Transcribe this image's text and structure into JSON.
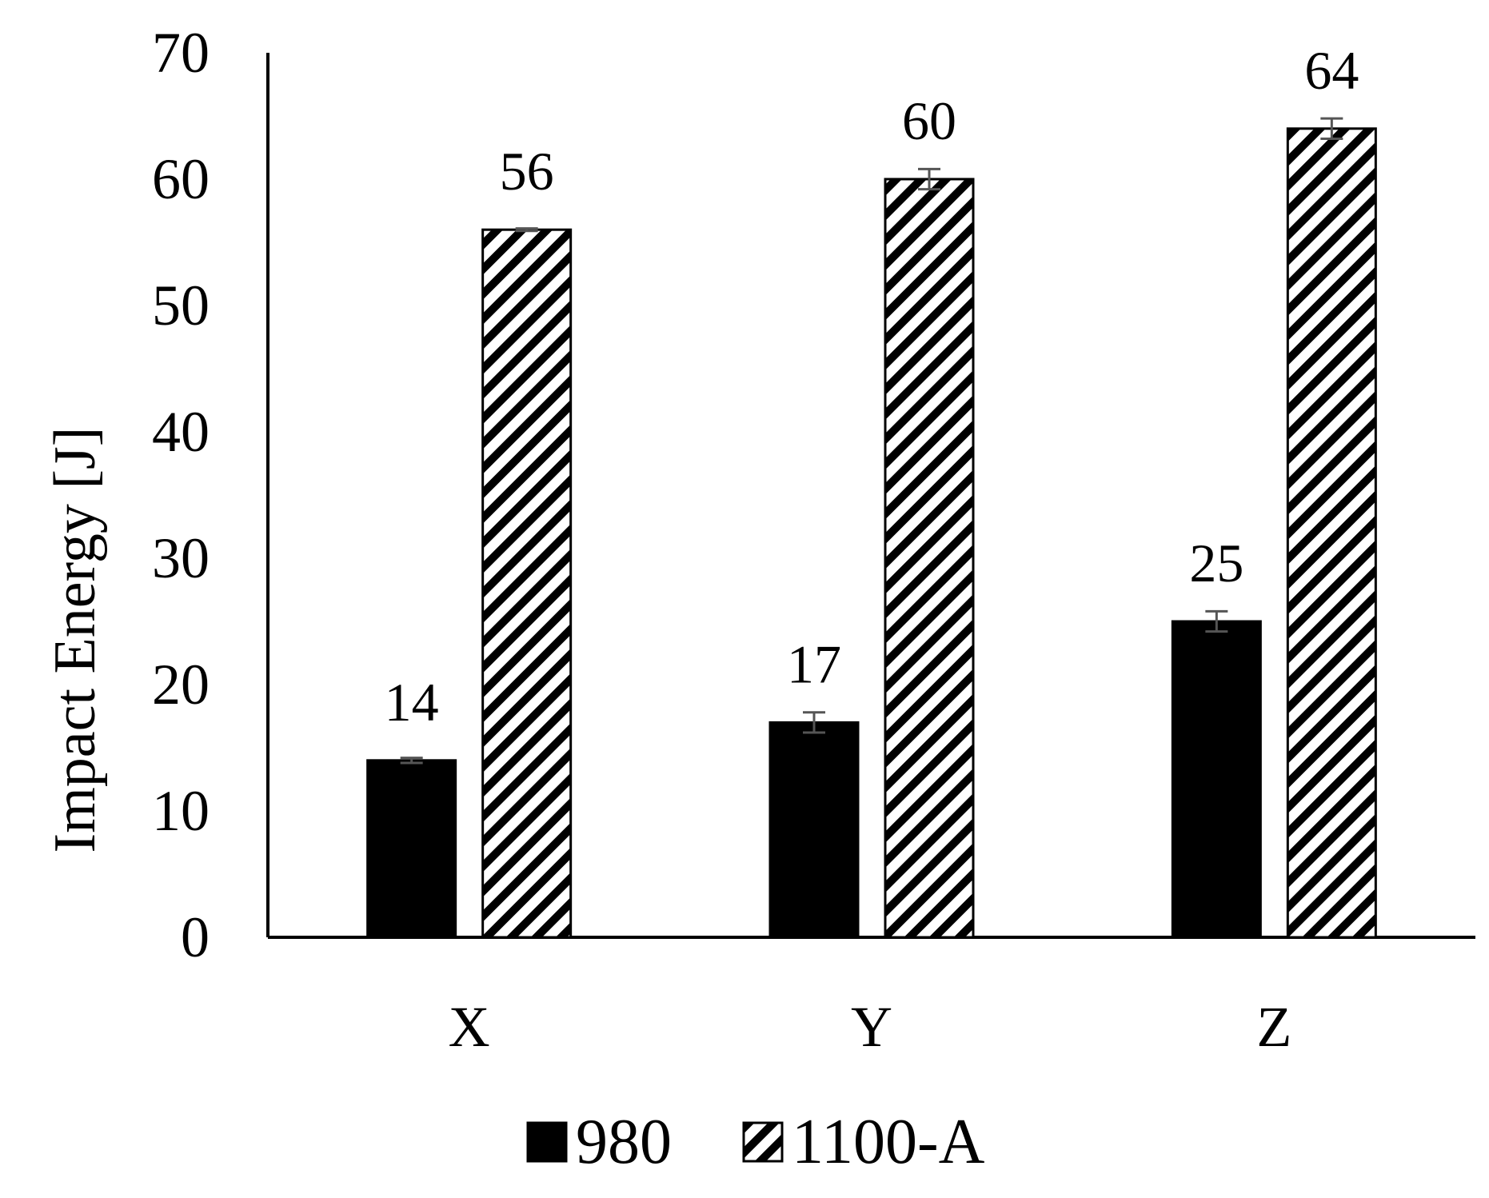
{
  "chart_data": {
    "type": "bar",
    "title": "",
    "xlabel": "",
    "ylabel": "Impact Energy [J]",
    "ylim": [
      0,
      70
    ],
    "yticks": [
      0,
      10,
      20,
      30,
      40,
      50,
      60,
      70
    ],
    "categories": [
      "X",
      "Y",
      "Z"
    ],
    "grid": false,
    "legend_position": "bottom",
    "series": [
      {
        "name": "980",
        "values": [
          14,
          17,
          25
        ],
        "error": [
          0.2,
          0.8,
          0.8
        ],
        "data_labels": [
          "14",
          "17",
          "25"
        ],
        "fill": "solid",
        "color": "#000000"
      },
      {
        "name": "1100-A",
        "values": [
          56,
          60,
          64
        ],
        "error": [
          0.1,
          0.8,
          0.8
        ],
        "data_labels": [
          "56",
          "60",
          "64"
        ],
        "fill": "diagonal-hatch",
        "color": "#000000"
      }
    ]
  }
}
